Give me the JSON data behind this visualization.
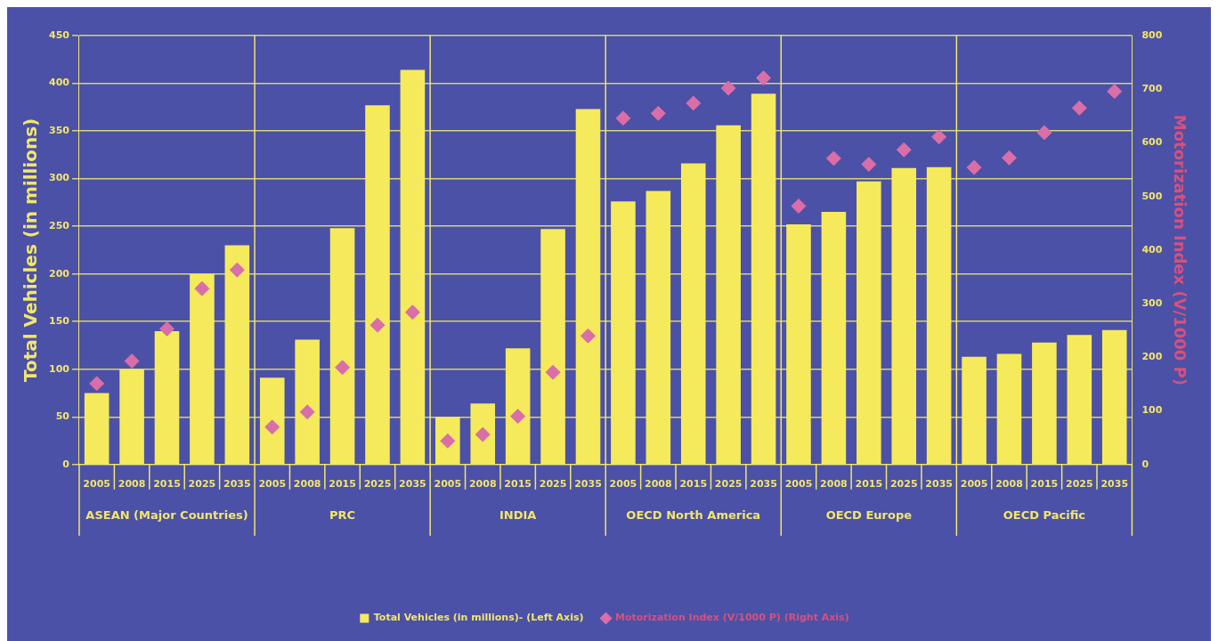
{
  "chart_data": {
    "type": "bar",
    "ylabel": "Total Vehicles (in millions)",
    "y2label": "Motorization Index (V/1000 P)",
    "categories": [
      "2005",
      "2008",
      "2015",
      "2025",
      "2035",
      "2005",
      "2008",
      "2015",
      "2025",
      "2035",
      "2005",
      "2008",
      "2015",
      "2025",
      "2035",
      "2005",
      "2008",
      "2015",
      "2025",
      "2035",
      "2005",
      "2008",
      "2015",
      "2025",
      "2035",
      "2005",
      "2008",
      "2015",
      "2025",
      "2035"
    ],
    "annotations": [
      "ASEAN (Major Countries)",
      "PRC",
      "INDIA",
      "OECD North America",
      "OECD Europe",
      "OECD Pacific"
    ],
    "series": [
      {
        "name": "Total Vehicles (in millions)- (Left Axis)",
        "color": "#f5ea5c",
        "values": [
          75,
          100,
          140,
          200,
          230,
          91,
          131,
          248,
          377,
          414,
          50,
          64,
          122,
          247,
          373,
          276,
          287,
          316,
          356,
          389,
          252,
          265,
          297,
          311,
          312,
          113,
          116,
          128,
          136,
          141
        ]
      },
      {
        "name": "Motorization Index (V/1000 P) (Right Axis)",
        "type": "scatter",
        "axis": "y2",
        "marker": "diamond",
        "color": "#d96ea8",
        "values": [
          151,
          193,
          253,
          328,
          363,
          70,
          98,
          181,
          260,
          284,
          44,
          56,
          90,
          172,
          240,
          646,
          655,
          674,
          702,
          721,
          482,
          571,
          560,
          587,
          611,
          554,
          572,
          619,
          665,
          696
        ]
      }
    ],
    "ylim": [
      0,
      450
    ],
    "yticks": [
      0,
      50,
      100,
      150,
      200,
      250,
      300,
      350,
      400,
      450
    ],
    "y2lim": [
      0,
      800
    ],
    "y2ticks": [
      0,
      100,
      200,
      300,
      400,
      500,
      600,
      700,
      800
    ],
    "grid": "y",
    "legend": "bottom"
  }
}
